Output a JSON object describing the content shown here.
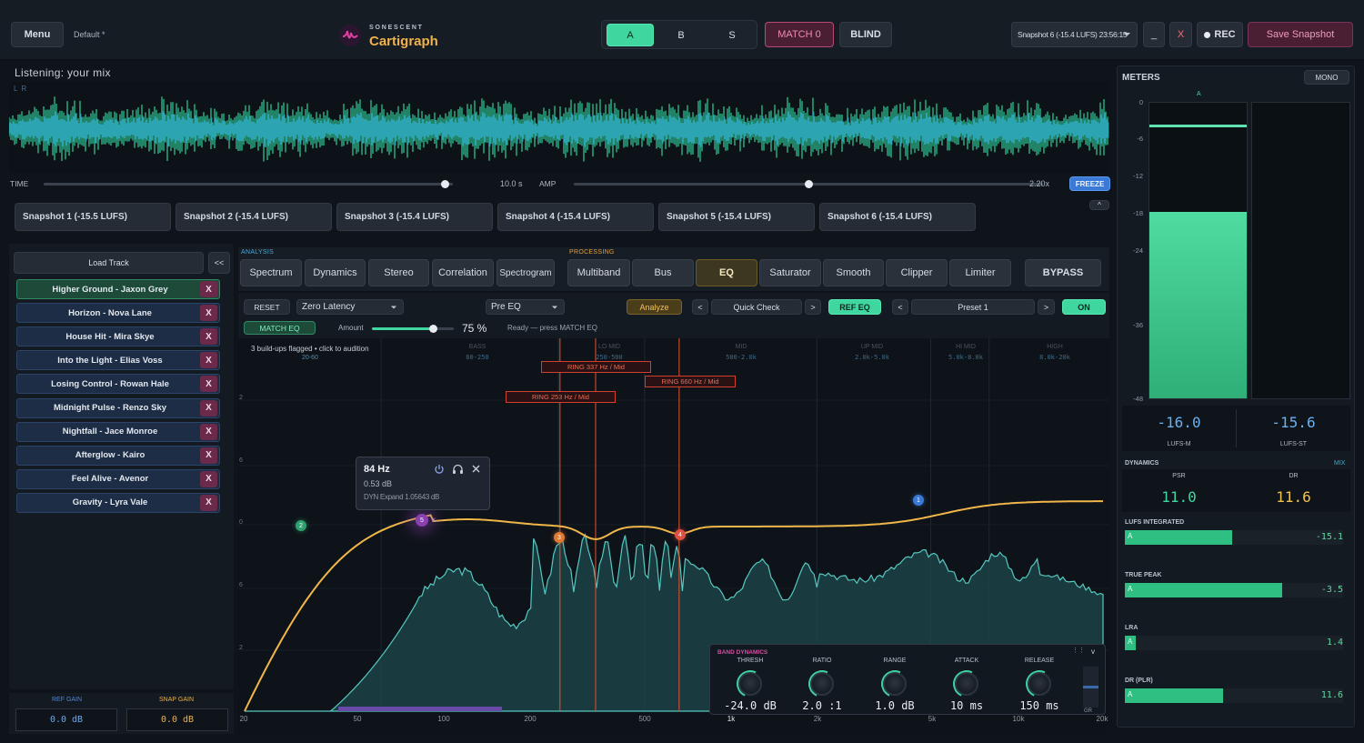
{
  "topbar": {
    "menu": "Menu",
    "preset": "Default",
    "preset_modified": "*",
    "brand_top": "SONESCENT",
    "brand_name": "Cartigraph",
    "ab_a": "A",
    "ab_b": "B",
    "ab_s": "S",
    "match": "MATCH 0",
    "blind": "BLIND",
    "snapshot_select": "Snapshot 6 (-15.4 LUFS) 23:56:15",
    "minimize": "_",
    "close": "X",
    "rec": "REC",
    "save_snapshot": "Save Snapshot"
  },
  "waveform": {
    "listening": "Listening: your mix",
    "channels": "L R",
    "time_label": "TIME",
    "time_value": "10.0 s",
    "time_fraction": 0.98,
    "amp_label": "AMP",
    "amp_value": "2.20x",
    "amp_fraction": 0.5,
    "freeze": "FREEZE"
  },
  "snapshots": [
    "Snapshot 1 (-15.5 LUFS)",
    "Snapshot 2 (-15.4 LUFS)",
    "Snapshot 3 (-15.4 LUFS)",
    "Snapshot 4 (-15.4 LUFS)",
    "Snapshot 5 (-15.4 LUFS)",
    "Snapshot 6 (-15.4 LUFS)"
  ],
  "snapshots_collapse": "^",
  "tracks": {
    "load": "Load Track",
    "collapse": "<<",
    "remove": "X",
    "items": [
      "Higher Ground - Jaxon Grey",
      "Horizon - Nova Lane",
      "House Hit - Mira Skye",
      "Into the Light - Elias Voss",
      "Losing Control - Rowan Hale",
      "Midnight Pulse - Renzo Sky",
      "Nightfall - Jace Monroe",
      "Afterglow - Kairo",
      "Feel Alive - Avenor",
      "Gravity - Lyra Vale"
    ]
  },
  "gains": {
    "ref_label": "REF GAIN",
    "ref_value": "0.0 dB",
    "snap_label": "SNAP GAIN",
    "snap_value": "0.0 dB"
  },
  "tabs": {
    "analysis_label": "ANALYSIS",
    "processing_label": "PROCESSING",
    "analysis": [
      "Spectrum",
      "Dynamics",
      "Stereo",
      "Correlation",
      "Spectrogram"
    ],
    "processing": [
      "Multiband",
      "Bus",
      "EQ",
      "Saturator",
      "Smooth",
      "Clipper",
      "Limiter"
    ],
    "bypass": "BYPASS"
  },
  "eq_toolbar": {
    "reset": "RESET",
    "latency": "Zero Latency",
    "mode": "Pre EQ",
    "analyze": "Analyze",
    "prev": "<",
    "next": ">",
    "quick_check": "Quick Check",
    "ref_eq": "REF EQ",
    "preset": "Preset 1",
    "on": "ON",
    "match_eq": "MATCH EQ",
    "amount_label": "Amount",
    "amount_value": "75 %",
    "amount_fraction": 0.75,
    "status": "Ready — press MATCH EQ"
  },
  "eq": {
    "hint_part1": "3 build-ups flagged •",
    "hint_part2": "click to audition",
    "bands": [
      {
        "name": "BASS",
        "range": "60-250"
      },
      {
        "name": "LO MID",
        "range": "250-500"
      },
      {
        "name": "MID",
        "range": "500-2.0k"
      },
      {
        "name": "UP MID",
        "range": "2.0k-5.0k"
      },
      {
        "name": "HI MID",
        "range": "5.0k-8.0k"
      },
      {
        "name": "HIGH",
        "range": "8.0k-20k"
      }
    ],
    "sub_range": "20-60",
    "rings": [
      "RING 337 Hz / Mid",
      "RING 660 Hz / Mid",
      "RING 253 Hz / Mid"
    ],
    "db_ticks": [
      "2",
      "6",
      "0",
      "6",
      "2"
    ],
    "freq_ticks": [
      "20",
      "50",
      "100",
      "200",
      "500",
      "1k",
      "2k",
      "5k",
      "10k",
      "20k"
    ],
    "nodes": [
      "2",
      "5",
      "3",
      "4",
      "1"
    ],
    "node_close": "x",
    "tooltip": {
      "freq": "84 Hz",
      "gain": "0.53 dB",
      "dyn": "DYN Expand 1.05643 dB"
    }
  },
  "band_dynamics": {
    "title": "BAND DYNAMICS",
    "dots": "⋮⋮",
    "toggle": "v",
    "gr": "GR",
    "knobs": [
      {
        "name": "THRESH",
        "value": "-24.0 dB"
      },
      {
        "name": "RATIO",
        "value": "2.0 :1"
      },
      {
        "name": "RANGE",
        "value": "1.0 dB"
      },
      {
        "name": "ATTACK",
        "value": "10 ms"
      },
      {
        "name": "RELEASE",
        "value": "150 ms"
      }
    ]
  },
  "meters": {
    "title": "METERS",
    "mono": "MONO",
    "channel": "A",
    "scale": [
      "0",
      "-6",
      "-12",
      "-18",
      "-24",
      "-36",
      "-48"
    ],
    "lufs_m": "-16.0",
    "lufs_m_label": "LUFS-M",
    "lufs_st": "-15.6",
    "lufs_st_label": "LUFS-ST",
    "dynamics_label": "DYNAMICS",
    "mix_label": "MIX",
    "psr_label": "PSR",
    "psr": "11.0",
    "dr_label": "DR",
    "dr": "11.6",
    "rows": [
      {
        "label": "LUFS INTEGRATED",
        "value": "-15.1",
        "fill": 0.49
      },
      {
        "label": "TRUE PEAK",
        "value": "-3.5",
        "fill": 0.72
      },
      {
        "label": "LRA",
        "value": "1.4",
        "fill": 0.05
      },
      {
        "label": "DR (PLR)",
        "value": "11.6",
        "fill": 0.45
      }
    ],
    "bar_letter": "A",
    "colors": {
      "accent": "#2fbf82",
      "ring": "#ff5a3a",
      "curve": "#f0b64a"
    }
  }
}
